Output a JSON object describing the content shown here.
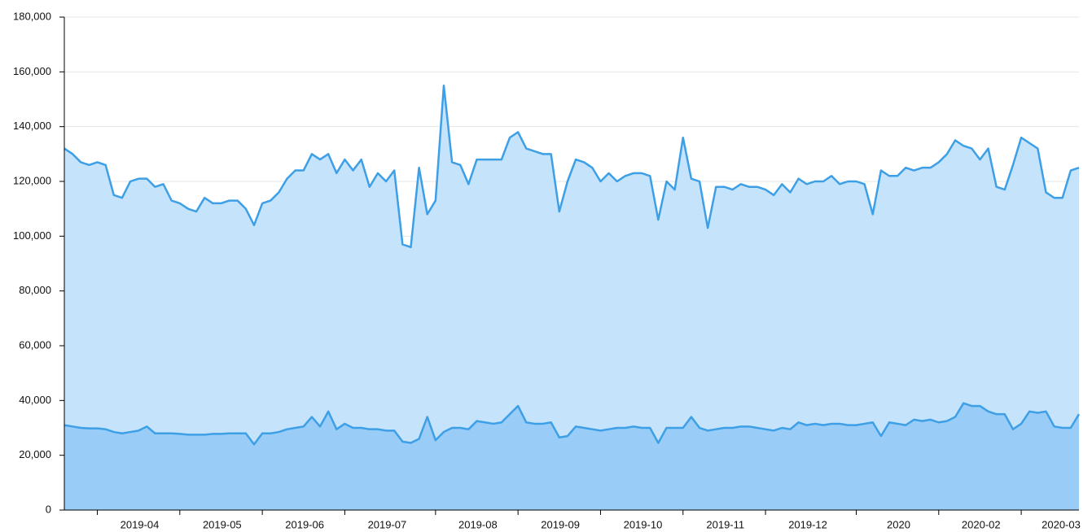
{
  "chart_data": {
    "type": "area",
    "categories": [
      null,
      null,
      null,
      null,
      "2019-04",
      null,
      null,
      null,
      null,
      null,
      null,
      null,
      null,
      null,
      "2019-05",
      null,
      null,
      null,
      null,
      null,
      null,
      null,
      null,
      null,
      "2019-06",
      null,
      null,
      null,
      null,
      null,
      null,
      null,
      null,
      null,
      "2019-07",
      null,
      null,
      null,
      null,
      null,
      null,
      null,
      null,
      null,
      null,
      "2019-08",
      null,
      null,
      null,
      null,
      null,
      null,
      null,
      null,
      null,
      "2019-09",
      null,
      null,
      null,
      null,
      null,
      null,
      null,
      null,
      null,
      "2019-10",
      null,
      null,
      null,
      null,
      null,
      null,
      null,
      null,
      null,
      "2019-11",
      null,
      null,
      null,
      null,
      null,
      null,
      null,
      null,
      null,
      "2019-12",
      null,
      null,
      null,
      null,
      null,
      null,
      null,
      null,
      null,
      null,
      "2020",
      null,
      null,
      null,
      null,
      null,
      null,
      null,
      null,
      null,
      "2020-02",
      null,
      null,
      null,
      null,
      null,
      null,
      null,
      null,
      null,
      "2020-03",
      null,
      null,
      null,
      null,
      null,
      null,
      null
    ],
    "series": [
      {
        "color": "#3d9fe6",
        "fill": "#c5e3fa",
        "values": [
          132000,
          130000,
          127000,
          126000,
          127000,
          126000,
          115000,
          114000,
          120000,
          121000,
          121000,
          118000,
          119000,
          113000,
          112000,
          110000,
          109000,
          114000,
          112000,
          112000,
          113000,
          113000,
          110000,
          104000,
          112000,
          113000,
          116000,
          121000,
          124000,
          124000,
          130000,
          128000,
          130000,
          123000,
          128000,
          124000,
          128000,
          118000,
          123000,
          120000,
          124000,
          97000,
          96000,
          125000,
          108000,
          113000,
          155000,
          127000,
          126000,
          119000,
          128000,
          128000,
          128000,
          128000,
          136000,
          138000,
          132000,
          131000,
          130000,
          130000,
          109000,
          120000,
          128000,
          127000,
          125000,
          120000,
          123000,
          120000,
          122000,
          123000,
          123000,
          122000,
          106000,
          120000,
          117000,
          136000,
          121000,
          120000,
          103000,
          118000,
          118000,
          117000,
          119000,
          118000,
          118000,
          117000,
          115000,
          119000,
          116000,
          121000,
          119000,
          120000,
          120000,
          122000,
          119000,
          120000,
          120000,
          119000,
          108000,
          124000,
          122000,
          122000,
          125000,
          124000,
          125000,
          125000,
          127000,
          130000,
          135000,
          133000,
          132000,
          128000,
          132000,
          118000,
          117000,
          126000,
          136000,
          134000,
          132000,
          116000,
          114000,
          114000,
          124000,
          125000
        ]
      },
      {
        "color": "#3d9fe6",
        "fill": "#99cdf8",
        "values": [
          31000,
          30500,
          30000,
          29800,
          29800,
          29500,
          28500,
          28000,
          28500,
          29000,
          30500,
          28000,
          28000,
          28000,
          27800,
          27500,
          27500,
          27500,
          27800,
          27800,
          28000,
          28000,
          28000,
          24000,
          28000,
          28000,
          28500,
          29500,
          30000,
          30500,
          34000,
          30500,
          36000,
          29500,
          31500,
          30000,
          30000,
          29500,
          29500,
          29000,
          29000,
          25000,
          24500,
          26000,
          34000,
          25500,
          28500,
          30000,
          30000,
          29500,
          32500,
          32000,
          31500,
          32000,
          35000,
          38000,
          32000,
          31500,
          31500,
          32000,
          26500,
          27000,
          30500,
          30000,
          29500,
          29000,
          29500,
          30000,
          30000,
          30500,
          30000,
          30000,
          24500,
          30000,
          30000,
          30000,
          34000,
          30000,
          29000,
          29500,
          30000,
          30000,
          30500,
          30500,
          30000,
          29500,
          29000,
          30000,
          29500,
          32000,
          31000,
          31500,
          31000,
          31500,
          31500,
          31000,
          31000,
          31500,
          32000,
          27000,
          32000,
          31500,
          31000,
          33000,
          32500,
          33000,
          32000,
          32500,
          34000,
          39000,
          38000,
          38000,
          36000,
          35000,
          35000,
          29500,
          31500,
          36000,
          35500,
          36000,
          30500,
          30000,
          30000,
          35000
        ]
      }
    ],
    "ylim": [
      0,
      180000
    ],
    "yticks": [
      0,
      {
        "value": 20000,
        "label": "20,000"
      },
      {
        "value": 40000,
        "label": "40,000"
      },
      {
        "value": 60000,
        "label": "60,000"
      },
      {
        "value": 80000,
        "label": "80,000"
      },
      {
        "value": 100000,
        "label": "100,000"
      },
      {
        "value": 120000,
        "label": "120,000"
      },
      {
        "value": 140000,
        "label": "140,000"
      },
      {
        "value": 160000,
        "label": "160,000"
      },
      {
        "value": 180000,
        "label": "180,000"
      }
    ],
    "grid": true
  }
}
